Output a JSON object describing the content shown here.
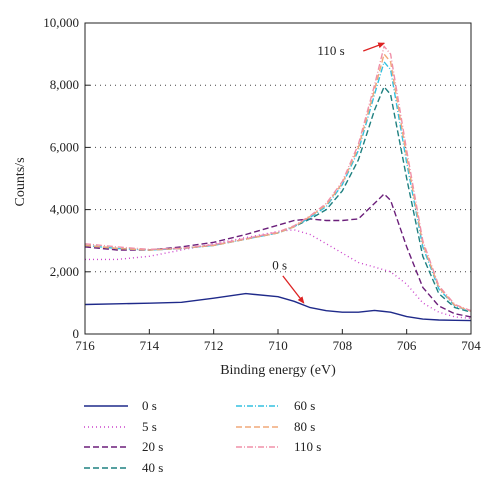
{
  "chart_data": {
    "type": "line",
    "xlabel": "Binding energy (eV)",
    "ylabel": "Counts/s",
    "xlim": [
      716,
      704
    ],
    "ylim": [
      0,
      10000
    ],
    "x_reversed": true,
    "xticks": [
      716,
      714,
      712,
      710,
      708,
      706,
      704
    ],
    "xtick_labels": [
      "716",
      "714",
      "712",
      "710",
      "708",
      "706",
      "704"
    ],
    "yticks": [
      0,
      2000,
      4000,
      6000,
      8000,
      10000
    ],
    "ytick_labels": [
      "0",
      "2,000",
      "4,000",
      "6,000",
      "8,000",
      "10,000"
    ],
    "grid": "horizontal dotted",
    "legend_position": "below",
    "annotations": [
      {
        "text": "110 s",
        "x": 708.35,
        "y": 9100,
        "arrow_from": [
          707.35,
          9100
        ],
        "arrow_to": [
          706.7,
          9350
        ]
      },
      {
        "text": "0 s",
        "x": 709.95,
        "y": 2200,
        "arrow_from": [
          709.85,
          1870
        ],
        "arrow_to": [
          709.2,
          1000
        ]
      }
    ],
    "series": [
      {
        "name": "0 s",
        "color": "#1f2a8a",
        "dash": "solid",
        "x": [
          716,
          715,
          714,
          713,
          712,
          711,
          710,
          709.5,
          709,
          708.5,
          708,
          707.5,
          707,
          706.5,
          706,
          705.5,
          705,
          704.5,
          704
        ],
        "y": [
          950,
          970,
          990,
          1020,
          1150,
          1300,
          1200,
          1050,
          850,
          750,
          700,
          700,
          760,
          700,
          560,
          480,
          450,
          440,
          430
        ]
      },
      {
        "name": "5 s",
        "color": "#cc44cc",
        "dash": "1,3",
        "x": [
          716,
          715,
          714,
          713,
          712,
          711,
          710,
          709.5,
          709,
          708.5,
          708,
          707.5,
          707,
          706.5,
          706,
          705.5,
          705,
          704.5,
          704
        ],
        "y": [
          2400,
          2400,
          2500,
          2700,
          2900,
          3100,
          3300,
          3350,
          3200,
          2900,
          2600,
          2300,
          2150,
          2000,
          1600,
          1000,
          700,
          550,
          500
        ]
      },
      {
        "name": "20 s",
        "color": "#6b1f7a",
        "dash": "6,3",
        "x": [
          716,
          715,
          714,
          713,
          712,
          711,
          710,
          709.5,
          709,
          708.5,
          708,
          707.5,
          707,
          706.7,
          706.5,
          706,
          705.5,
          705,
          704.5,
          704
        ],
        "y": [
          2800,
          2700,
          2700,
          2800,
          2950,
          3200,
          3500,
          3650,
          3700,
          3650,
          3650,
          3700,
          4200,
          4500,
          4300,
          2800,
          1500,
          900,
          650,
          550
        ]
      },
      {
        "name": "40 s",
        "color": "#1f8080",
        "dash": "6,3",
        "x": [
          716,
          715,
          714,
          713,
          712,
          711,
          710,
          709.5,
          709,
          708.5,
          708,
          707.5,
          707,
          706.7,
          706.5,
          706,
          705.5,
          705,
          704.5,
          704
        ],
        "y": [
          2850,
          2750,
          2700,
          2750,
          2850,
          3050,
          3250,
          3450,
          3700,
          4000,
          4600,
          5600,
          7200,
          7950,
          7700,
          5000,
          2500,
          1300,
          850,
          700
        ]
      },
      {
        "name": "60 s",
        "color": "#33c0e0",
        "dash": "6,2,1,2",
        "x": [
          716,
          715,
          714,
          713,
          712,
          711,
          710,
          709.5,
          709,
          708.5,
          708,
          707.5,
          707,
          706.7,
          706.5,
          706,
          705.5,
          705,
          704.5,
          704
        ],
        "y": [
          2850,
          2750,
          2700,
          2750,
          2850,
          3050,
          3250,
          3450,
          3750,
          4100,
          4800,
          5900,
          7700,
          8750,
          8500,
          5500,
          2800,
          1450,
          900,
          720
        ]
      },
      {
        "name": "80 s",
        "color": "#f0a878",
        "dash": "6,3",
        "x": [
          716,
          715,
          714,
          713,
          712,
          711,
          710,
          709.5,
          709,
          708.5,
          708,
          707.5,
          707,
          706.7,
          706.5,
          706,
          705.5,
          705,
          704.5,
          704
        ],
        "y": [
          2850,
          2750,
          2700,
          2750,
          2850,
          3050,
          3250,
          3450,
          3780,
          4150,
          4850,
          6000,
          7850,
          9000,
          8750,
          5700,
          2900,
          1500,
          920,
          730
        ]
      },
      {
        "name": "110 s",
        "color": "#f090a8",
        "dash": "6,2,1,2",
        "x": [
          716,
          715,
          714,
          713,
          712,
          711,
          710,
          709.5,
          709,
          708.5,
          708,
          707.5,
          707,
          706.7,
          706.5,
          706,
          705.5,
          705,
          704.5,
          704
        ],
        "y": [
          2900,
          2800,
          2720,
          2760,
          2870,
          3070,
          3280,
          3480,
          3800,
          4200,
          4900,
          6100,
          8000,
          9250,
          9000,
          5900,
          3000,
          1550,
          950,
          750
        ]
      }
    ]
  }
}
